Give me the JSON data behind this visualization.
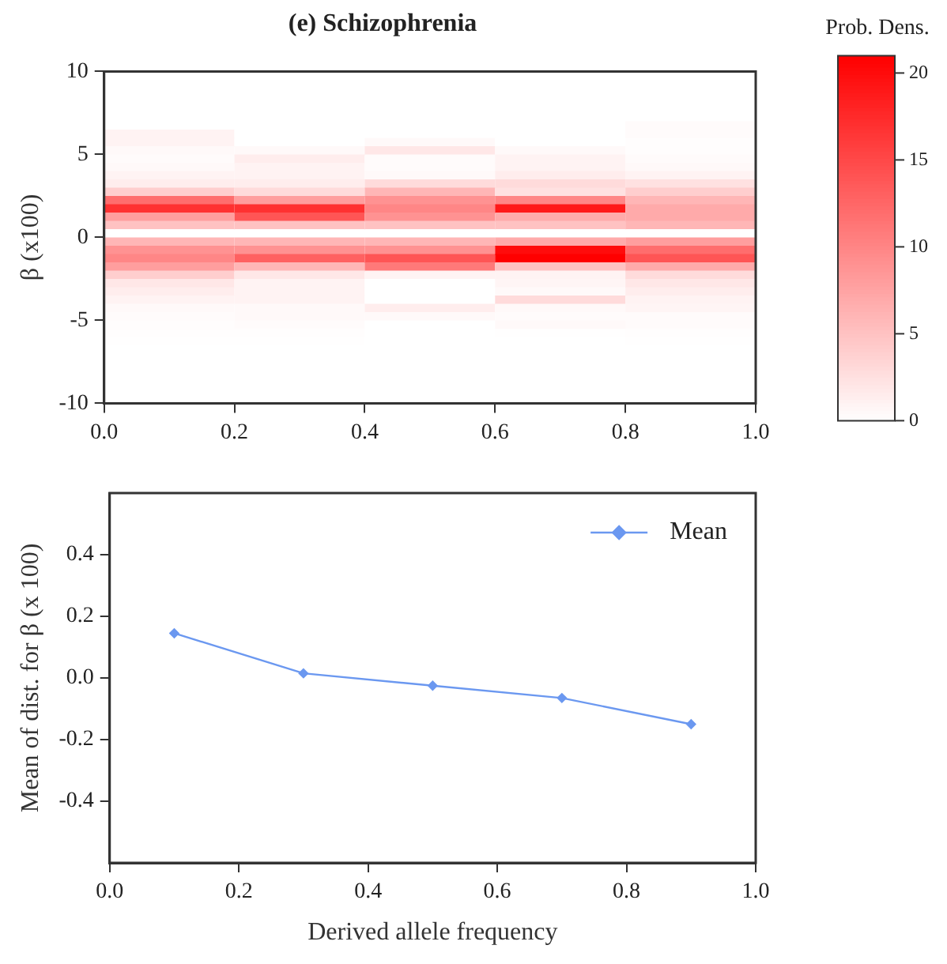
{
  "chart_data": [
    {
      "type": "heatmap",
      "title": "(e) Schizophrenia",
      "ylabel": "β (x100)",
      "clabel": "Prob. Dens.",
      "xlim": [
        0,
        1
      ],
      "xticks": [
        {
          "value": 0,
          "label": "0.0"
        },
        {
          "value": 0.2,
          "label": "0.2"
        },
        {
          "value": 0.4,
          "label": "0.4"
        },
        {
          "value": 0.6,
          "label": "0.6"
        },
        {
          "value": 0.8,
          "label": "0.8"
        },
        {
          "value": 1.0,
          "label": "1.0"
        }
      ],
      "ylim": [
        -10,
        10
      ],
      "yticks": [
        -10,
        -5,
        0,
        5,
        10
      ],
      "clim": [
        0,
        21
      ],
      "cticks": [
        0,
        5,
        10,
        15,
        20
      ],
      "color": "#ff0000",
      "cells": [
        [
          0,
          0,
          0,
          0,
          0
        ],
        [
          0,
          0,
          0,
          0,
          0
        ],
        [
          0,
          0,
          0,
          0,
          0
        ],
        [
          0,
          0,
          0,
          0,
          0
        ],
        [
          0,
          0,
          0,
          0,
          0
        ],
        [
          0,
          0,
          0,
          0,
          0
        ],
        [
          0,
          0,
          0,
          0,
          0.3
        ],
        [
          1,
          0,
          0,
          0,
          0.3
        ],
        [
          1,
          0,
          0.5,
          0,
          0.2
        ],
        [
          0.5,
          0.5,
          2,
          0.5,
          0.2
        ],
        [
          0.3,
          1.5,
          0.3,
          1,
          0.3
        ],
        [
          0.5,
          1,
          0.3,
          1,
          0.5
        ],
        [
          1,
          1,
          0.5,
          1.5,
          1
        ],
        [
          1.5,
          1.5,
          3,
          3,
          2.5
        ],
        [
          4,
          3,
          6,
          2.5,
          4
        ],
        [
          12,
          8,
          9,
          10,
          6
        ],
        [
          17,
          17,
          10,
          19,
          7
        ],
        [
          8,
          14,
          9,
          7,
          7
        ],
        [
          5,
          5,
          5,
          5,
          6
        ],
        [
          0,
          0,
          0,
          0,
          0
        ],
        [
          6,
          6,
          6,
          7,
          8
        ],
        [
          9,
          9,
          9,
          20,
          12
        ],
        [
          10,
          13,
          14,
          21,
          14
        ],
        [
          8,
          6,
          11,
          5,
          7
        ],
        [
          4,
          2,
          1,
          1,
          3
        ],
        [
          2,
          1,
          0,
          0.8,
          2
        ],
        [
          1.5,
          1,
          0,
          0.5,
          1.5
        ],
        [
          1,
          1,
          0,
          3,
          1
        ],
        [
          0.5,
          0.5,
          1.5,
          0.5,
          0.8
        ],
        [
          0.3,
          0.5,
          0.5,
          0.3,
          0.3
        ],
        [
          0.2,
          0.3,
          0,
          0.5,
          0.3
        ],
        [
          0.2,
          0.2,
          0,
          0.1,
          0.2
        ],
        [
          0.1,
          0.1,
          0,
          0,
          0.1
        ],
        [
          0,
          0,
          0,
          0,
          0
        ],
        [
          0,
          0,
          0,
          0,
          0
        ],
        [
          0,
          0,
          0,
          0,
          0
        ],
        [
          0,
          0,
          0,
          0,
          0
        ],
        [
          0,
          0,
          0,
          0,
          0
        ],
        [
          0,
          0,
          0,
          0,
          0
        ],
        [
          0,
          0,
          0,
          0,
          0
        ]
      ]
    },
    {
      "type": "line",
      "xlabel": "Derived allele frequency",
      "ylabel": "Mean of dist. for β (x 100)",
      "x": [
        0.1,
        0.3,
        0.5,
        0.7,
        0.9
      ],
      "xticks": [
        {
          "value": 0,
          "label": "0.0"
        },
        {
          "value": 0.2,
          "label": "0.2"
        },
        {
          "value": 0.4,
          "label": "0.4"
        },
        {
          "value": 0.6,
          "label": "0.6"
        },
        {
          "value": 0.8,
          "label": "0.8"
        },
        {
          "value": 1.0,
          "label": "1.0"
        }
      ],
      "series": [
        {
          "name": "Mean",
          "color": "#6b98f0",
          "values": [
            0.145,
            0.015,
            -0.025,
            -0.065,
            -0.15
          ]
        }
      ],
      "xlim": [
        0,
        1
      ],
      "ylim": [
        -0.6,
        0.6
      ],
      "yticks": [
        -0.4,
        -0.2,
        {
          "value": 0,
          "label": "0.0"
        },
        0.2,
        0.4
      ],
      "legend": "top right",
      "marker": "diamond",
      "grid": false
    }
  ]
}
